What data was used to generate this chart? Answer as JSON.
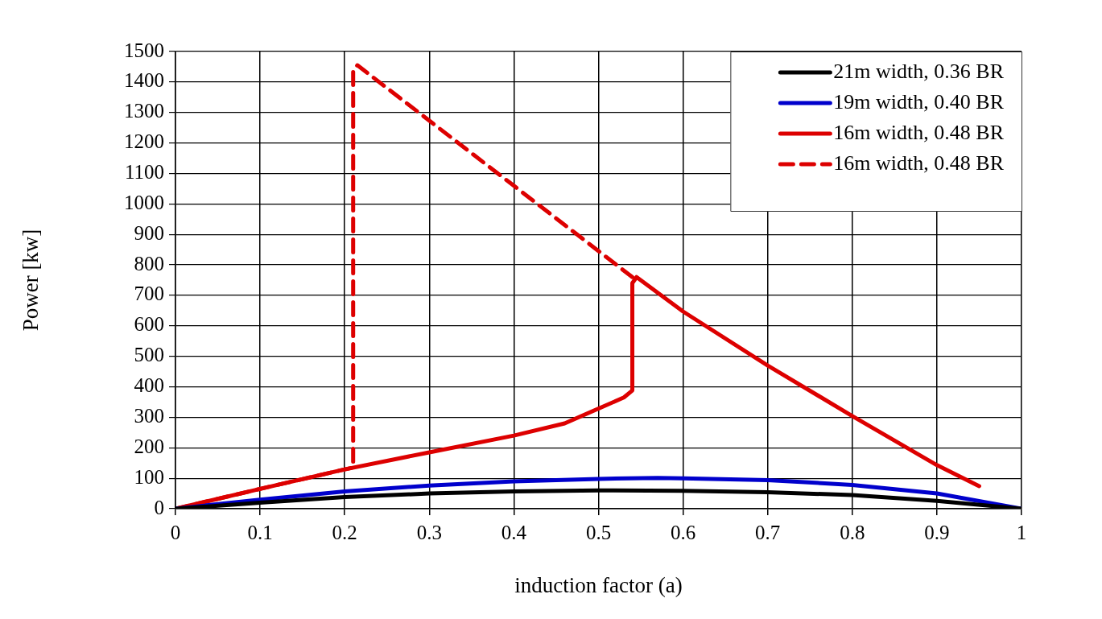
{
  "chart_data": {
    "type": "line",
    "xlabel": "induction factor (a)",
    "ylabel": "Power [kw]",
    "xlim": [
      0,
      1
    ],
    "xticks": [
      0,
      0.1,
      0.2,
      0.3,
      0.4,
      0.5,
      0.6,
      0.7,
      0.8,
      0.9,
      1
    ],
    "ylim": [
      0,
      1500
    ],
    "yticks": [
      0,
      100,
      200,
      300,
      400,
      500,
      600,
      700,
      800,
      900,
      1000,
      1100,
      1200,
      1300,
      1400,
      1500
    ],
    "grid": true,
    "legend": "top right",
    "series": [
      {
        "name": "21m width, 0.36 BR",
        "color": "#000000",
        "x": [
          0,
          0.1,
          0.2,
          0.3,
          0.4,
          0.5,
          0.6,
          0.7,
          0.8,
          0.9,
          1
        ],
        "values": [
          0,
          20,
          38,
          50,
          57,
          60,
          59,
          54,
          45,
          26,
          0
        ]
      },
      {
        "name": "19m width, 0.40 BR",
        "color": "#0000cc",
        "x": [
          0,
          0.1,
          0.2,
          0.3,
          0.4,
          0.5,
          0.57,
          0.6,
          0.7,
          0.8,
          0.9,
          1
        ],
        "values": [
          0,
          30,
          57,
          76,
          90,
          98,
          101,
          100,
          94,
          78,
          50,
          0
        ]
      },
      {
        "name": "16m width, 0.48 BR",
        "color": "#dd0000",
        "x": [
          0,
          0.1,
          0.2,
          0.3,
          0.4,
          0.46,
          0.53,
          0.54,
          0.54,
          0.545,
          0.6,
          0.7,
          0.8,
          0.9,
          0.95
        ],
        "values": [
          0,
          65,
          129,
          185,
          240,
          280,
          365,
          388,
          740,
          760,
          647,
          470,
          304,
          143,
          74
        ]
      },
      {
        "name": "16m width, 0.48 BR",
        "color": "#dd0000",
        "line_style": "dashed",
        "x": [
          0,
          0.1,
          0.2,
          0.21,
          0.21,
          0.215,
          0.54
        ],
        "values": [
          0,
          65,
          129,
          135,
          1440,
          1455,
          760
        ]
      }
    ]
  }
}
